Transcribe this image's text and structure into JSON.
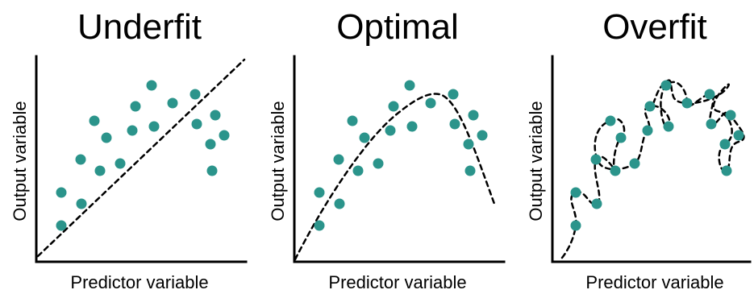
{
  "colors": {
    "point": "#2b948b",
    "axis": "#000000",
    "fit_line": "#000000",
    "background": "#ffffff"
  },
  "panels": [
    {
      "title": "Underfit",
      "xlabel": "Predictor variable",
      "ylabel": "Output variable",
      "fit_type": "straight-line"
    },
    {
      "title": "Optimal",
      "xlabel": "Predictor variable",
      "ylabel": "Output variable",
      "fit_type": "smooth-curve"
    },
    {
      "title": "Overfit",
      "xlabel": "Predictor variable",
      "ylabel": "Output variable",
      "fit_type": "wiggly-interpolating-curve"
    }
  ]
}
